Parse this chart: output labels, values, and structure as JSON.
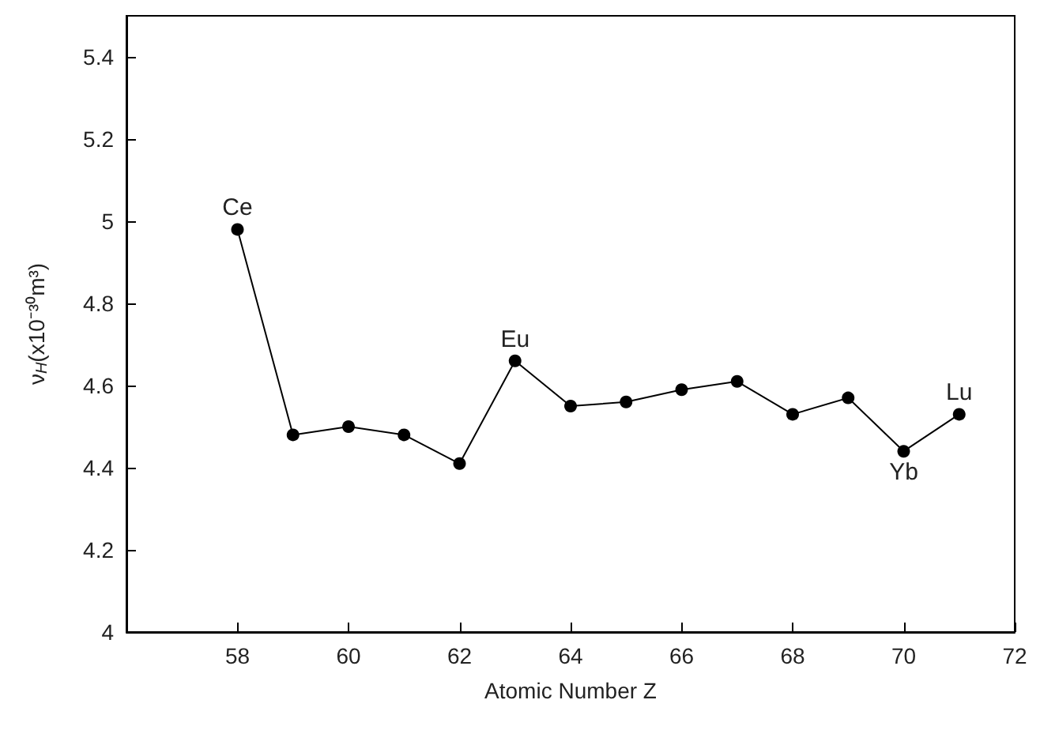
{
  "chart_data": {
    "type": "line",
    "xlabel": "Atomic Number Z",
    "ylabel": "ν$_{H}$(x10⁻³⁰m³)",
    "x": [
      58,
      59,
      60,
      61,
      62,
      63,
      64,
      65,
      66,
      67,
      68,
      69,
      70,
      71
    ],
    "series": [
      {
        "color": "#000000",
        "values": [
          4.98,
          4.48,
          4.5,
          4.48,
          4.41,
          4.66,
          4.55,
          4.56,
          4.59,
          4.61,
          4.53,
          4.57,
          4.44,
          4.53
        ]
      }
    ],
    "xlim": [
      56,
      72
    ],
    "xticks": [
      58,
      60,
      62,
      64,
      66,
      68,
      70,
      72
    ],
    "ylim": [
      4,
      5.5
    ],
    "yticks": [
      4,
      4.2,
      4.4,
      4.6,
      4.8,
      5,
      5.2,
      5.4
    ],
    "marker": "circle",
    "line_style": "solid",
    "grid": false,
    "annotations": [
      {
        "text": "Ce",
        "x": 58,
        "y": 4.98
      },
      {
        "text": "Eu",
        "x": 63,
        "y": 4.66
      },
      {
        "text": "Yb",
        "x": 70,
        "y": 4.44
      },
      {
        "text": "Lu",
        "x": 71,
        "y": 4.53
      }
    ]
  }
}
